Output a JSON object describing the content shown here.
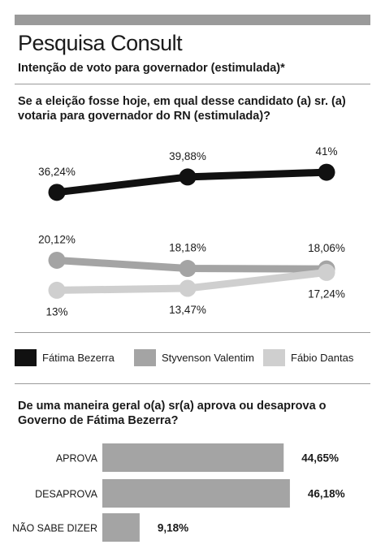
{
  "header": {
    "title": "Pesquisa Consult",
    "subtitle": "Intenção de voto para governador (estimulada)*"
  },
  "section1": {
    "question_line1": "Se a eleição fosse hoje, em qual desse candidato (a) sr. (a)",
    "question_line2": "votaria para governador do RN (estimulada)?"
  },
  "section2": {
    "question_line1": "De uma maneira geral o(a) sr(a) aprova ou desaprova o",
    "question_line2": "Governo de Fátima Bezerra?"
  },
  "legend": [
    {
      "label": "Fátima Bezerra",
      "color": "#111111"
    },
    {
      "label": "Styvenson Valentim",
      "color": "#a4a4a4"
    },
    {
      "label": "Fábio Dantas",
      "color": "#cfcfcf"
    }
  ],
  "chart_data": [
    {
      "type": "line",
      "x": [
        "1",
        "2",
        "3"
      ],
      "series": [
        {
          "name": "Fátima Bezerra",
          "values": [
            36.24,
            39.88,
            41
          ],
          "labels": [
            "36,24%",
            "39,88%",
            "41%"
          ],
          "color": "#111111"
        },
        {
          "name": "Styvenson Valentim",
          "values": [
            20.12,
            18.18,
            18.06
          ],
          "labels": [
            "20,12%",
            "18,18%",
            "18,06%"
          ],
          "color": "#a4a4a4"
        },
        {
          "name": "Fábio Dantas",
          "values": [
            13,
            13.47,
            17.24
          ],
          "labels": [
            "13%",
            "13,47%",
            "17,24%"
          ],
          "color": "#cfcfcf"
        }
      ],
      "grid": false,
      "legend": "bottom"
    },
    {
      "type": "bar",
      "orientation": "horizontal",
      "categories": [
        "APROVA",
        "DESAPROVA",
        "NÃO SABE DIZER"
      ],
      "values": [
        44.65,
        46.18,
        9.18
      ],
      "labels": [
        "44,65%",
        "46,18%",
        "9,18%"
      ],
      "color": "#a4a4a4"
    }
  ]
}
